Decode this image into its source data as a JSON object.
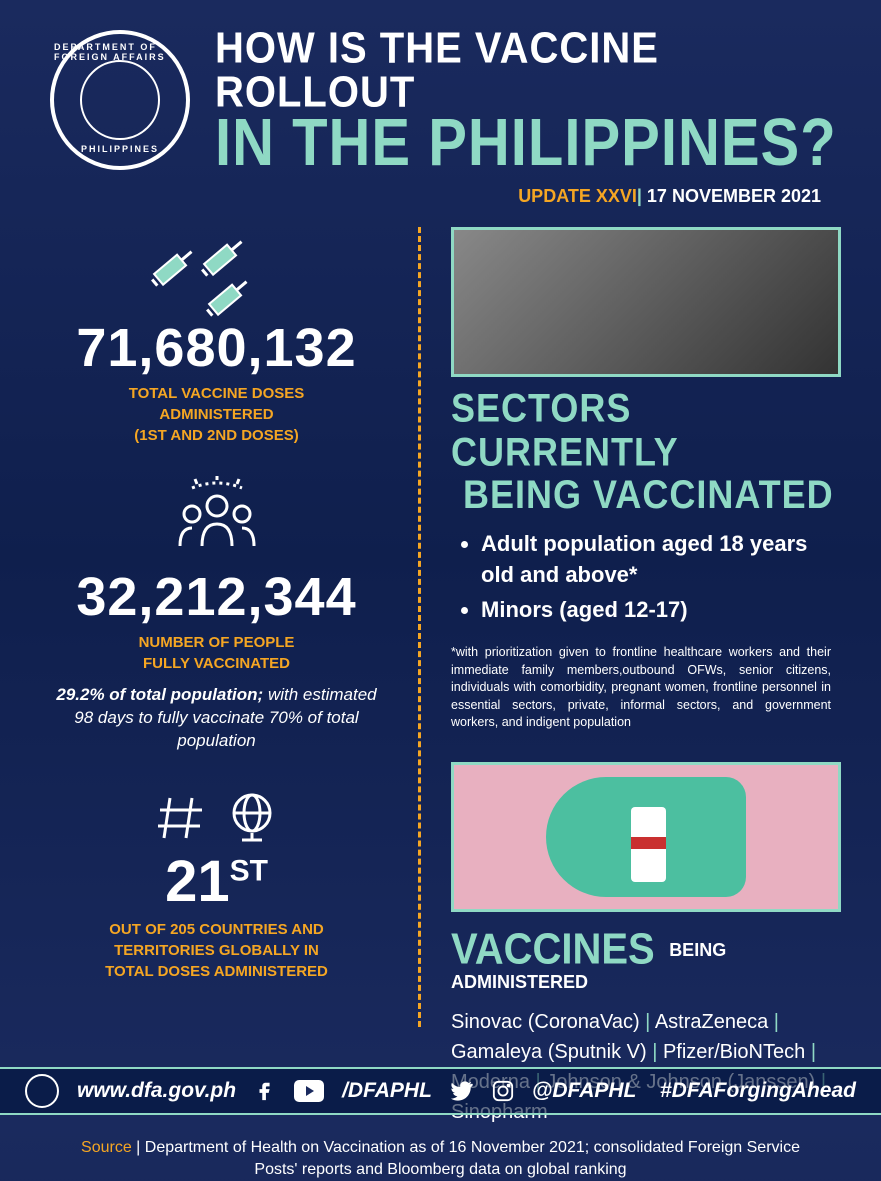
{
  "colors": {
    "background_top": "#1a2a5e",
    "background_bottom": "#0f1f4d",
    "accent_teal": "#8fd9c4",
    "accent_orange": "#f5a623",
    "text_white": "#ffffff"
  },
  "header": {
    "seal_top": "DEPARTMENT OF FOREIGN AFFAIRS",
    "seal_bottom": "PHILIPPINES",
    "title_line1": "HOW IS THE VACCINE ROLLOUT",
    "title_line2": "IN THE PHILIPPINES?",
    "update_label": "UPDATE XXVI",
    "update_date": "17 NOVEMBER 2021"
  },
  "stats": {
    "total_doses": {
      "value": "71,680,132",
      "label_l1": "TOTAL VACCINE DOSES",
      "label_l2": "ADMINISTERED",
      "label_l3": "(1ST AND 2ND DOSES)"
    },
    "fully_vaccinated": {
      "value": "32,212,344",
      "label_l1": "NUMBER OF PEOPLE",
      "label_l2": "FULLY VACCINATED",
      "sub_bold": "29.2% of total population;",
      "sub_rest": "with estimated 98 days to fully vaccinate 70% of total population"
    },
    "rank": {
      "value": "21",
      "suffix": "ST",
      "label_l1": "OUT OF 205 COUNTRIES AND",
      "label_l2": "TERRITORIES GLOBALLY IN",
      "label_l3": "TOTAL DOSES ADMINISTERED"
    }
  },
  "sectors": {
    "title_l1": "SECTORS CURRENTLY",
    "title_l2": "BEING VACCINATED",
    "items": [
      "Adult population aged 18 years old and above*",
      "Minors (aged 12-17)"
    ],
    "footnote": "*with prioritization given to frontline healthcare workers and their immediate family members,outbound OFWs, senior citizens, individuals with comorbidity, pregnant women, frontline personnel in essential sectors, private, informal sectors, and government workers, and indigent population"
  },
  "vaccines": {
    "title_main": "VACCINES",
    "title_sub": "BEING ADMINISTERED",
    "list": [
      "Sinovac (CoronaVac)",
      "AstraZeneca",
      "Gamaleya (Sputnik V)",
      "Pfizer/BioNTech",
      "Moderna",
      "Johnson & Johnson (Janssen)",
      "Sinopharm"
    ]
  },
  "source": {
    "label": "Source",
    "text": "Department of Health on Vaccination as of 16 November 2021; consolidated Foreign Service Posts' reports and Bloomberg data on global ranking"
  },
  "footer": {
    "website": "www.dfa.gov.ph",
    "handle1": "/DFAPHL",
    "handle2": "@DFAPHL",
    "hashtag": "#DFAForgingAhead"
  }
}
